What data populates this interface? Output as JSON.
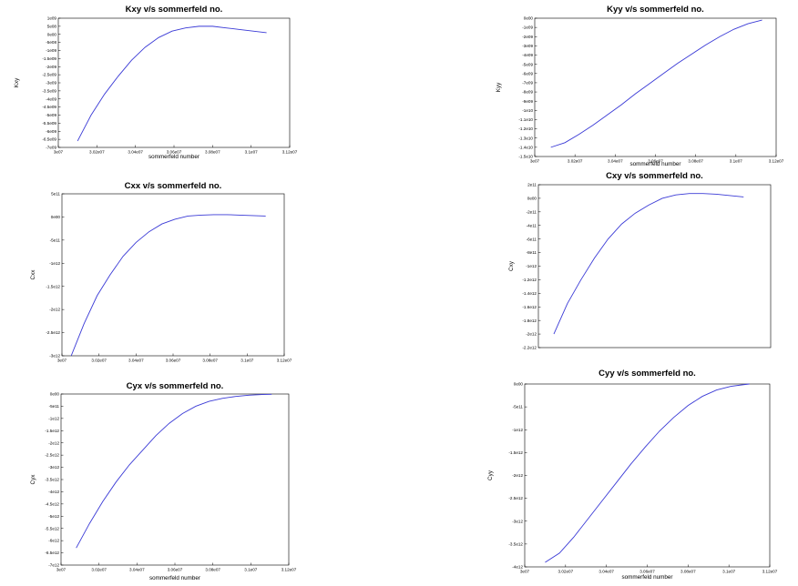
{
  "figure": {
    "line_color": "#3a3ad6"
  },
  "chart_data": [
    {
      "id": "kxy",
      "type": "line",
      "title": "Kxy v/s sommerfeld no.",
      "xlabel": "sommerfeld number",
      "ylabel": "Kxy",
      "xlim": [
        30000000,
        31200000
      ],
      "ylim": [
        -7000000000.0,
        1000000000.0
      ],
      "x_ticks": [
        "3e07",
        "3.02e07",
        "3.04e07",
        "3.06e07",
        "3.08e07",
        "3.1e07",
        "3.12e07"
      ],
      "y_ticks": [
        "1e09",
        "5e08",
        "0e00",
        "-5e08",
        "-1e09",
        "-1.5e09",
        "-2e09",
        "-2.5e09",
        "-3e09",
        "-3.5e09",
        "-4e09",
        "-4.5e09",
        "-5e09",
        "-5.5e09",
        "-6e09",
        "-6.5e09",
        "-7e09"
      ],
      "series": [
        {
          "x": [
            30100000,
            30170000,
            30240000,
            30310000,
            30380000,
            30450000,
            30520000,
            30590000,
            30660000,
            30730000,
            30800000,
            30870000,
            30940000,
            31010000,
            31080000
          ],
          "y": [
            -6600000000.0,
            -5000000000.0,
            -3700000000.0,
            -2600000000.0,
            -1600000000.0,
            -800000000.0,
            -200000000.0,
            200000000.0,
            400000000.0,
            500000000.0,
            500000000.0,
            400000000.0,
            300000000.0,
            200000000.0,
            100000000.0
          ]
        }
      ]
    },
    {
      "id": "kyy",
      "type": "line",
      "title": "Kyy v/s sommerfeld no.",
      "xlabel": "sommerfeld number",
      "ylabel": "Kyy",
      "xlim": [
        30000000,
        31200000
      ],
      "ylim": [
        -15000000000.0,
        0
      ],
      "x_ticks": [
        "3e07",
        "3.02e07",
        "3.04e07",
        "3.06e07",
        "3.08e07",
        "3.1e07",
        "3.12e07"
      ],
      "y_ticks": [
        "0e00",
        "-1e09",
        "-2e09",
        "-3e09",
        "-4e09",
        "-5e09",
        "-6e09",
        "-7e09",
        "-8e09",
        "-9e09",
        "-1e10",
        "-1.1e10",
        "-1.2e10",
        "-1.3e10",
        "-1.4e10",
        "-1.5e10"
      ],
      "series": [
        {
          "x": [
            30080000,
            30150000,
            30220000,
            30290000,
            30360000,
            30430000,
            30500000,
            30570000,
            30640000,
            30710000,
            30780000,
            30850000,
            30920000,
            30990000,
            31060000,
            31130000
          ],
          "y": [
            -14000000000.0,
            -13500000000.0,
            -12600000000.0,
            -11600000000.0,
            -10500000000.0,
            -9400000000.0,
            -8200000000.0,
            -7100000000.0,
            -6000000000.0,
            -4900000000.0,
            -3900000000.0,
            -2900000000.0,
            -2000000000.0,
            -1200000000.0,
            -600000000.0,
            -200000000.0
          ]
        }
      ]
    },
    {
      "id": "cxx",
      "type": "line",
      "title": "Cxx v/s sommerfeld no.",
      "xlabel": "",
      "ylabel": "Cxx",
      "xlim": [
        30000000,
        31200000
      ],
      "ylim": [
        -3000000000000.0,
        500000000000.0
      ],
      "x_ticks": [
        "3e07",
        "3.02e07",
        "3.04e07",
        "3.06e07",
        "3.08e07",
        "3.1e07",
        "3.12e07"
      ],
      "y_ticks": [
        "5e11",
        "0e00",
        "-5e11",
        "-1e12",
        "-1.5e12",
        "-2e12",
        "-2.5e12",
        "-3e12"
      ],
      "series": [
        {
          "x": [
            30050000,
            30120000,
            30190000,
            30260000,
            30330000,
            30400000,
            30470000,
            30540000,
            30610000,
            30680000,
            30750000,
            30820000,
            30890000,
            30960000,
            31030000,
            31100000
          ],
          "y": [
            -3000000000000.0,
            -2300000000000.0,
            -1700000000000.0,
            -1250000000000.0,
            -850000000000.0,
            -550000000000.0,
            -320000000000.0,
            -150000000000.0,
            -50000000000.0,
            20000000000.0,
            40000000000.0,
            50000000000.0,
            50000000000.0,
            40000000000.0,
            30000000000.0,
            20000000000.0
          ]
        }
      ]
    },
    {
      "id": "cxy",
      "type": "line",
      "title": "Cxy v/s sommerfeld no.",
      "xlabel": "",
      "ylabel": "Cxy",
      "xlim": [
        30000000,
        31200000
      ],
      "ylim": [
        -2200000000000.0,
        200000000000.0
      ],
      "x_ticks": [],
      "y_ticks": [
        "2e11",
        "0e00",
        "-2e11",
        "-4e11",
        "-6e11",
        "-8e11",
        "-1e12",
        "-1.2e12",
        "-1.4e12",
        "-1.6e12",
        "-1.8e12",
        "-2e12",
        "-2.2e12"
      ],
      "series": [
        {
          "x": [
            30080000,
            30150000,
            30220000,
            30290000,
            30360000,
            30430000,
            30500000,
            30570000,
            30640000,
            30710000,
            30780000,
            30850000,
            30920000,
            30990000,
            31060000
          ],
          "y": [
            -2000000000000.0,
            -1550000000000.0,
            -1200000000000.0,
            -880000000000.0,
            -600000000000.0,
            -380000000000.0,
            -220000000000.0,
            -100000000000.0,
            0.0,
            50000000000.0,
            70000000000.0,
            70000000000.0,
            60000000000.0,
            40000000000.0,
            20000000000.0
          ]
        }
      ]
    },
    {
      "id": "cyx",
      "type": "line",
      "title": "Cyx v/s sommerfeld no.",
      "xlabel": "sommerfeld number",
      "ylabel": "Cyx",
      "xlim": [
        30000000,
        31200000
      ],
      "ylim": [
        -7000000000000.0,
        0
      ],
      "x_ticks": [
        "3e07",
        "3.02e07",
        "3.04e07",
        "3.06e07",
        "3.08e07",
        "3.1e07",
        "3.12e07"
      ],
      "y_ticks": [
        "0e00",
        "-5e11",
        "-1e12",
        "-1.5e12",
        "-2e12",
        "-2.5e12",
        "-3e12",
        "-3.5e12",
        "-4e12",
        "-4.5e12",
        "-5e12",
        "-5.5e12",
        "-6e12",
        "-6.5e12",
        "-7e12"
      ],
      "series": [
        {
          "x": [
            30080000,
            30150000,
            30220000,
            30290000,
            30360000,
            30430000,
            30500000,
            30570000,
            30640000,
            30710000,
            30780000,
            30850000,
            30920000,
            30990000,
            31060000,
            31110000
          ],
          "y": [
            -6300000000000.0,
            -5300000000000.0,
            -4400000000000.0,
            -3600000000000.0,
            -2900000000000.0,
            -2300000000000.0,
            -1700000000000.0,
            -1200000000000.0,
            -800000000000.0,
            -500000000000.0,
            -300000000000.0,
            -180000000000.0,
            -100000000000.0,
            -50000000000.0,
            -20000000000.0,
            -10000000000.0
          ]
        }
      ]
    },
    {
      "id": "cyy",
      "type": "line",
      "title": "Cyy v/s sommerfeld no.",
      "xlabel": "sommerfeld number",
      "ylabel": "Cyy",
      "xlim": [
        30000000,
        31200000
      ],
      "ylim": [
        -4000000000000.0,
        0
      ],
      "x_ticks": [
        "3e07",
        "3.02e07",
        "3.04e07",
        "3.06e07",
        "3.08e07",
        "3.1e07",
        "3.12e07"
      ],
      "y_ticks": [
        "0e00",
        "-5e11",
        "-1e12",
        "-1.5e12",
        "-2e12",
        "-2.5e12",
        "-3e12",
        "-3.5e12",
        "-4e12"
      ],
      "series": [
        {
          "x": [
            30100000,
            30170000,
            30240000,
            30310000,
            30380000,
            30450000,
            30520000,
            30590000,
            30660000,
            30730000,
            30800000,
            30870000,
            30940000,
            31010000,
            31080000,
            31100000
          ],
          "y": [
            -3900000000000.0,
            -3700000000000.0,
            -3350000000000.0,
            -2950000000000.0,
            -2550000000000.0,
            -2150000000000.0,
            -1750000000000.0,
            -1380000000000.0,
            -1030000000000.0,
            -730000000000.0,
            -470000000000.0,
            -270000000000.0,
            -130000000000.0,
            -50000000000.0,
            -10000000000.0,
            0.0
          ]
        }
      ]
    }
  ]
}
